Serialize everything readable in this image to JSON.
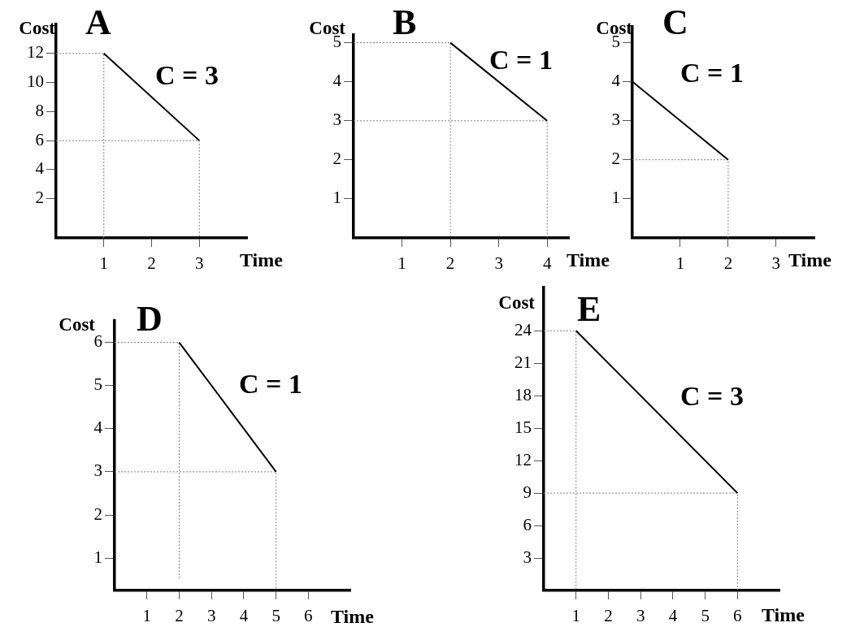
{
  "chart_data": [
    {
      "type": "line",
      "title": "A",
      "xlabel": "Time",
      "ylabel": "Cost",
      "xlim": [
        0,
        4
      ],
      "ylim": [
        -0.7,
        14
      ],
      "xticks": [
        1,
        2,
        3
      ],
      "yticks": [
        2,
        4,
        6,
        8,
        10,
        12
      ],
      "annotations": [
        "C = 3"
      ],
      "series": [
        {
          "color": "#000000",
          "x": [
            1,
            3
          ],
          "values": [
            12,
            6
          ]
        },
        {
          "color": "#808080",
          "line_style": "dotted",
          "x": [
            0,
            1,
            1
          ],
          "values": [
            12,
            12,
            -0.7
          ]
        },
        {
          "color": "#808080",
          "line_style": "dotted",
          "x": [
            0,
            3,
            3
          ],
          "values": [
            6,
            6,
            -0.7
          ]
        }
      ]
    },
    {
      "type": "line",
      "title": "B",
      "xlabel": "Time",
      "ylabel": "Cost",
      "xlim": [
        0,
        4.45
      ],
      "ylim": [
        0,
        5.2
      ],
      "xticks": [
        1,
        2,
        3,
        4
      ],
      "yticks": [
        1,
        2,
        3,
        4,
        5
      ],
      "annotations": [
        "C = 1"
      ],
      "series": [
        {
          "color": "#000000",
          "x": [
            2,
            4
          ],
          "values": [
            5,
            3
          ]
        },
        {
          "color": "#808080",
          "line_style": "dotted",
          "x": [
            0,
            2,
            2
          ],
          "values": [
            5,
            5,
            0
          ]
        },
        {
          "color": "#808080",
          "line_style": "dotted",
          "x": [
            0,
            4,
            4
          ],
          "values": [
            3,
            3,
            0
          ]
        }
      ]
    },
    {
      "type": "line",
      "title": "C",
      "xlabel": "Time",
      "ylabel": "Cost",
      "xlim": [
        0,
        3.8
      ],
      "ylim": [
        0,
        5.4
      ],
      "xticks": [
        1,
        2,
        3
      ],
      "yticks": [
        1,
        2,
        3,
        4,
        5
      ],
      "annotations": [
        "C = 1"
      ],
      "series": [
        {
          "color": "#000000",
          "x": [
            0,
            2
          ],
          "values": [
            4,
            2
          ]
        },
        {
          "color": "#808080",
          "line_style": "dotted",
          "x": [
            0,
            2,
            2
          ],
          "values": [
            2,
            2,
            0
          ]
        }
      ]
    },
    {
      "type": "line",
      "title": "D",
      "xlabel": "Time",
      "ylabel": "Cost",
      "xlim": [
        0,
        7.3
      ],
      "ylim": [
        0.25,
        6.5
      ],
      "xticks": [
        1,
        2,
        3,
        4,
        5,
        6
      ],
      "yticks": [
        1,
        2,
        3,
        4,
        5,
        6
      ],
      "annotations": [
        "C = 1"
      ],
      "series": [
        {
          "color": "#000000",
          "x": [
            2,
            5
          ],
          "values": [
            6,
            3
          ]
        },
        {
          "color": "#808080",
          "line_style": "dotted",
          "x": [
            0,
            2,
            2
          ],
          "values": [
            6,
            6,
            0.5
          ]
        },
        {
          "color": "#808080",
          "line_style": "dotted",
          "x": [
            0,
            5,
            5
          ],
          "values": [
            3,
            3,
            0.25
          ]
        }
      ]
    },
    {
      "type": "line",
      "title": "E",
      "xlabel": "Time",
      "ylabel": "Cost",
      "xlim": [
        0,
        7.3
      ],
      "ylim": [
        0,
        28
      ],
      "xticks": [
        1,
        2,
        3,
        4,
        5,
        6
      ],
      "yticks": [
        3,
        6,
        9,
        12,
        15,
        18,
        21,
        24
      ],
      "annotations": [
        "C = 3"
      ],
      "series": [
        {
          "color": "#000000",
          "x": [
            1,
            6
          ],
          "values": [
            24,
            9
          ]
        },
        {
          "color": "#808080",
          "line_style": "dotted",
          "x": [
            0,
            1,
            1
          ],
          "values": [
            24,
            24,
            0
          ]
        },
        {
          "color": "#808080",
          "line_style": "dotted",
          "x": [
            0,
            6,
            6
          ],
          "values": [
            9,
            9,
            0
          ]
        }
      ]
    }
  ]
}
